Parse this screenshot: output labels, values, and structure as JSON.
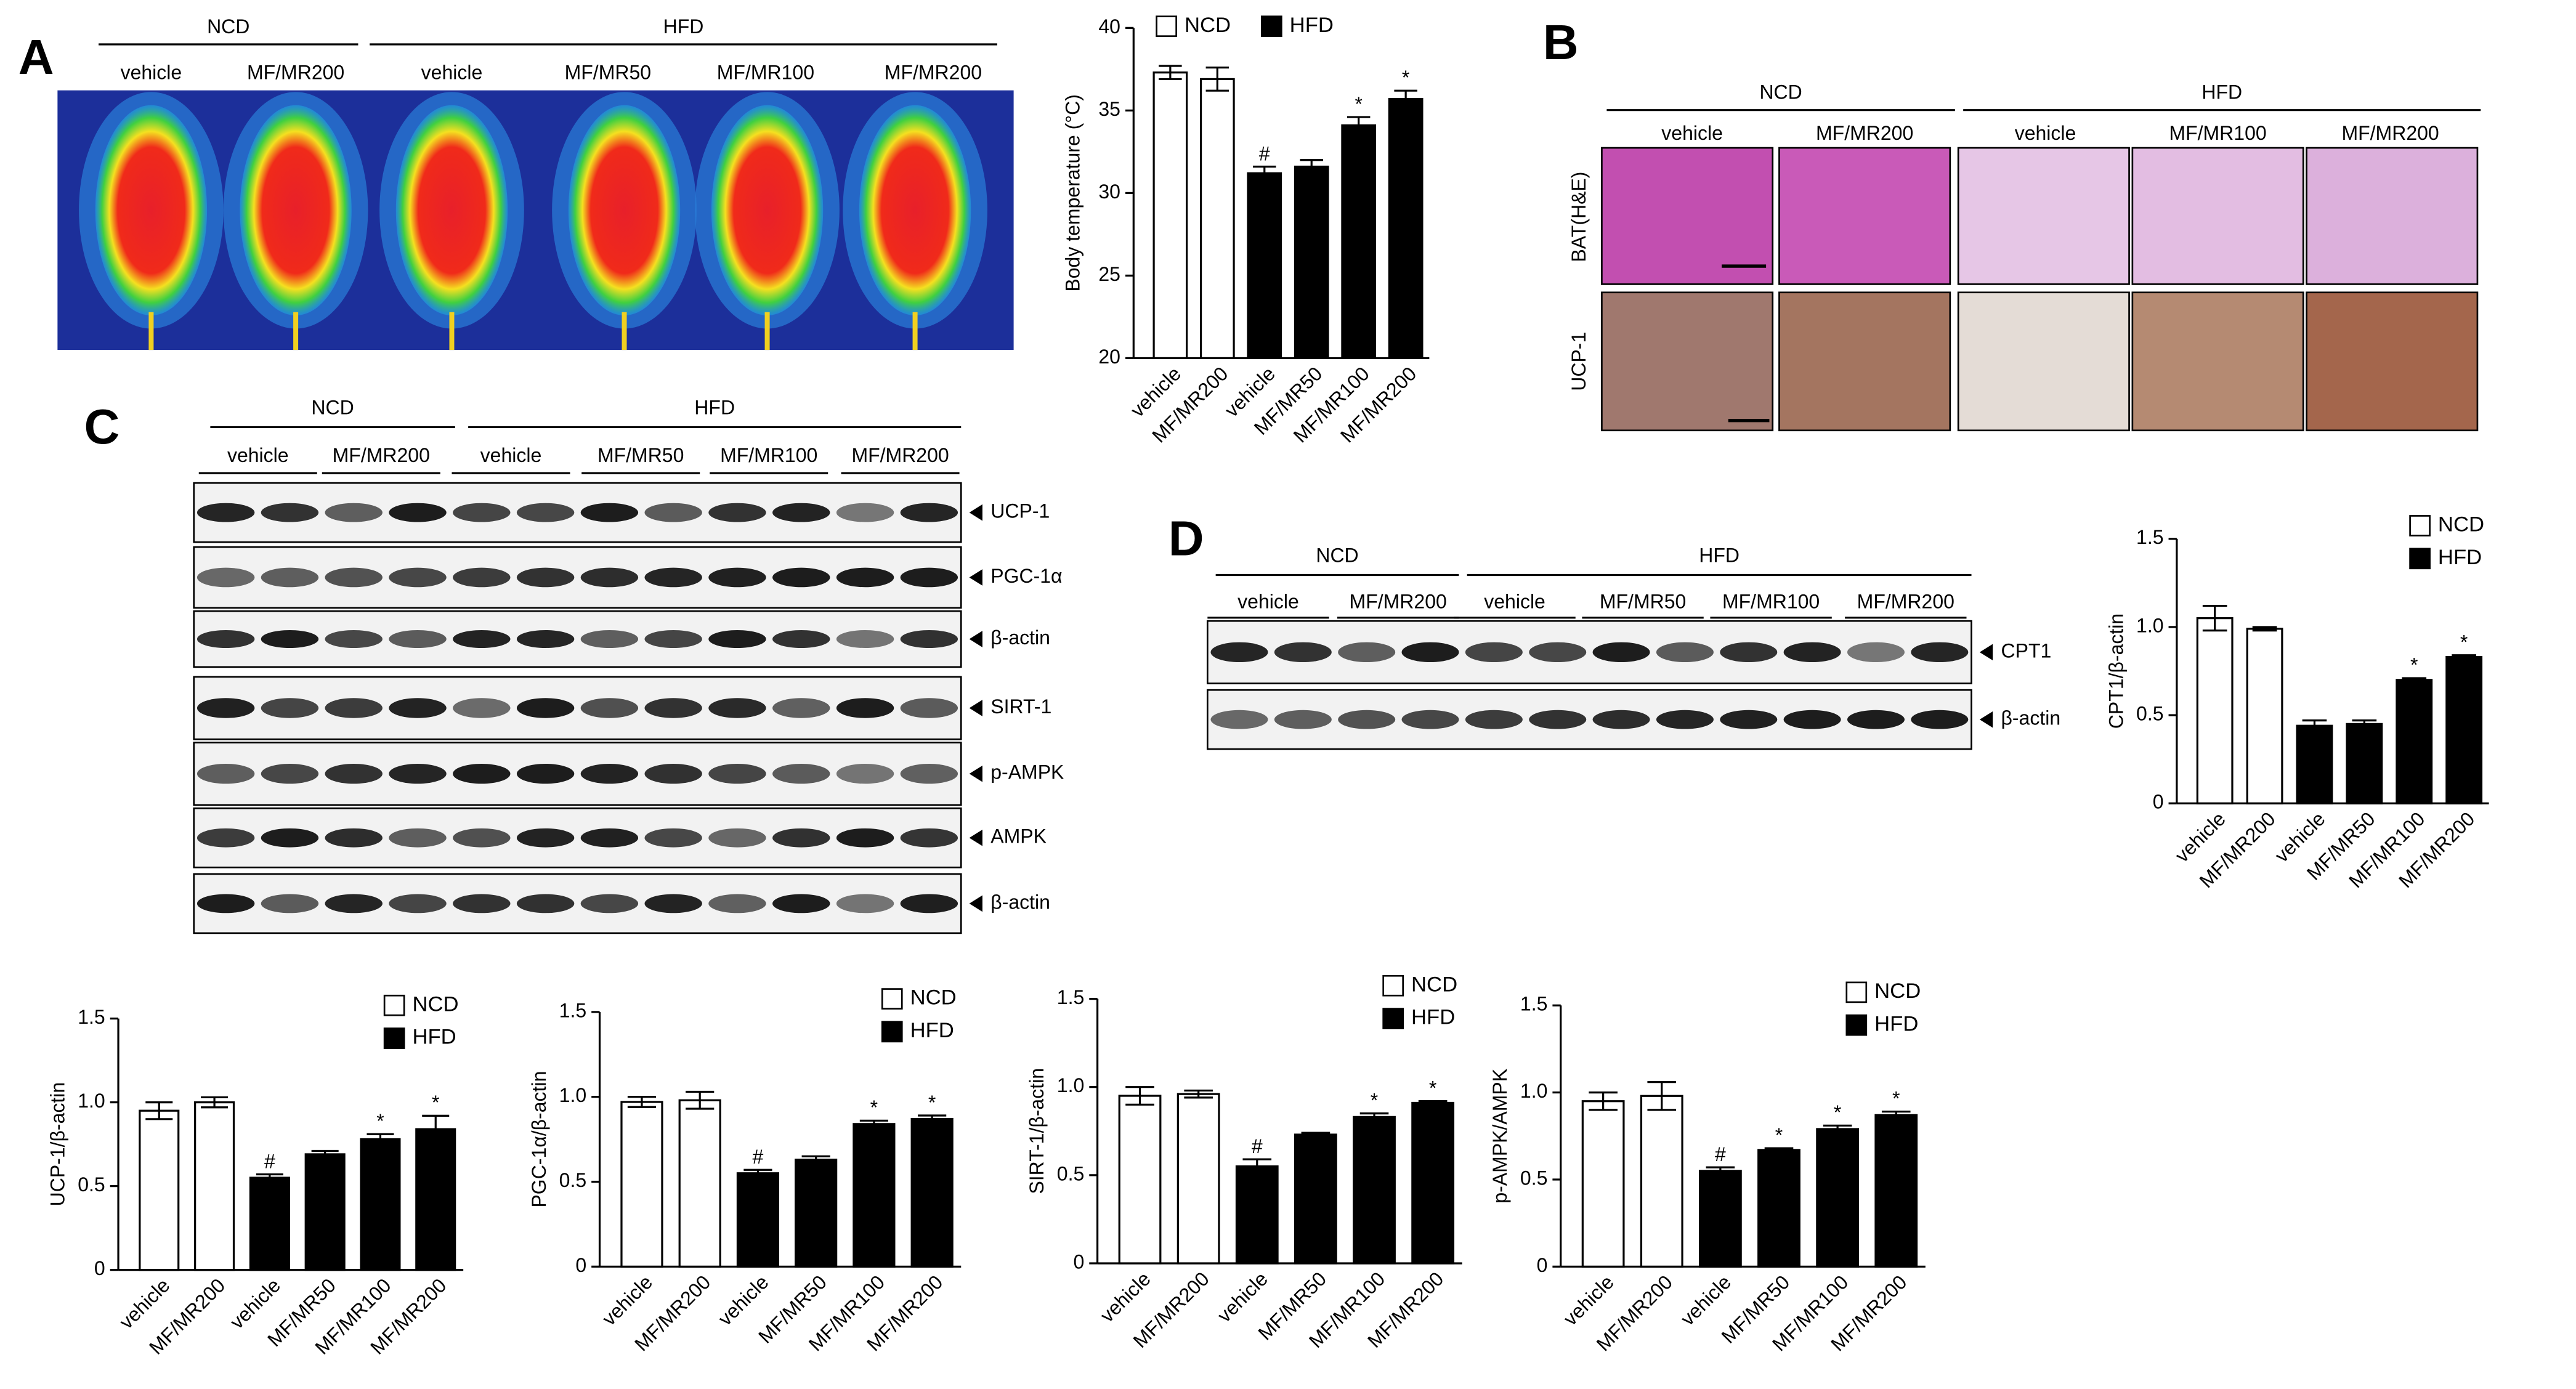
{
  "figure": {
    "panel_a": {
      "label": "A",
      "groups": [
        "NCD",
        "HFD"
      ],
      "lanes": [
        "vehicle",
        "MF/MR200",
        "vehicle",
        "MF/MR50",
        "MF/MR100",
        "MF/MR200"
      ]
    },
    "panel_b": {
      "label": "B",
      "groups": [
        "NCD",
        "HFD"
      ],
      "lanes": [
        "vehicle",
        "MF/MR200",
        "vehicle",
        "MF/MR100",
        "MF/MR200"
      ],
      "rows": [
        "BAT(H&E)",
        "UCP-1"
      ]
    },
    "panel_c": {
      "label": "C",
      "groups": [
        "NCD",
        "HFD"
      ],
      "lanes": [
        "vehicle",
        "MF/MR200",
        "vehicle",
        "MF/MR50",
        "MF/MR100",
        "MF/MR200"
      ],
      "bands": [
        "UCP-1",
        "PGC-1α",
        "β-actin",
        "SIRT-1",
        "p-AMPK",
        "AMPK",
        "β-actin"
      ]
    },
    "panel_d": {
      "label": "D",
      "groups": [
        "NCD",
        "HFD"
      ],
      "lanes": [
        "vehicle",
        "MF/MR200",
        "vehicle",
        "MF/MR50",
        "MF/MR100",
        "MF/MR200"
      ],
      "bands": [
        "CPT1",
        "β-actin"
      ]
    }
  },
  "chart_data": [
    {
      "type": "bar",
      "ylabel": "Body temperature (°C)",
      "categories": [
        "vehicle",
        "MF/MR200",
        "vehicle",
        "MF/MR50",
        "MF/MR100",
        "MF/MR200"
      ],
      "series": [
        {
          "name": "NCD",
          "color": "#ffffff",
          "values": [
            37.3,
            36.9,
            null,
            null,
            null,
            null
          ],
          "errors": [
            0.4,
            0.7,
            null,
            null,
            null,
            null
          ]
        },
        {
          "name": "HFD",
          "color": "#000000",
          "values": [
            null,
            null,
            31.2,
            31.6,
            34.1,
            35.7
          ],
          "errors": [
            null,
            null,
            0.4,
            0.4,
            0.5,
            0.5
          ]
        }
      ],
      "annotations": [
        null,
        null,
        "#",
        null,
        "*",
        "*"
      ],
      "ylim": [
        20,
        40
      ],
      "yticks": [
        20,
        25,
        30,
        35,
        40
      ],
      "legend": "top"
    },
    {
      "type": "bar",
      "ylabel": "CPT1/β-actin",
      "categories": [
        "vehicle",
        "MF/MR200",
        "vehicle",
        "MF/MR50",
        "MF/MR100",
        "MF/MR200"
      ],
      "series": [
        {
          "name": "NCD",
          "color": "#ffffff",
          "values": [
            1.05,
            0.99,
            null,
            null,
            null,
            null
          ],
          "errors": [
            0.07,
            0.01,
            null,
            null,
            null,
            null
          ]
        },
        {
          "name": "HFD",
          "color": "#000000",
          "values": [
            null,
            null,
            0.44,
            0.45,
            0.7,
            0.83
          ],
          "errors": [
            null,
            null,
            0.03,
            0.02,
            0.01,
            0.01
          ]
        }
      ],
      "annotations": [
        null,
        null,
        null,
        null,
        "*",
        "*"
      ],
      "ylim": [
        0,
        1.5
      ],
      "yticks": [
        0,
        0.5,
        {
          "value": 1,
          "label": "1.0"
        },
        1.5
      ],
      "legend": "upper-right"
    },
    {
      "type": "bar",
      "ylabel": "UCP-1/β-actin",
      "categories": [
        "vehicle",
        "MF/MR200",
        "vehicle",
        "MF/MR50",
        "MF/MR100",
        "MF/MR200"
      ],
      "series": [
        {
          "name": "NCD",
          "color": "#ffffff",
          "values": [
            0.95,
            1.0,
            null,
            null,
            null,
            null
          ],
          "errors": [
            0.05,
            0.03,
            null,
            null,
            null,
            null
          ]
        },
        {
          "name": "HFD",
          "color": "#000000",
          "values": [
            null,
            null,
            0.55,
            0.69,
            0.78,
            0.84
          ],
          "errors": [
            null,
            null,
            0.02,
            0.02,
            0.03,
            0.08
          ]
        }
      ],
      "annotations": [
        null,
        null,
        "#",
        null,
        "*",
        "*"
      ],
      "ylim": [
        0,
        1.5
      ],
      "yticks": [
        0,
        0.5,
        {
          "value": 1,
          "label": "1.0"
        },
        1.5
      ],
      "legend": "upper-right"
    },
    {
      "type": "bar",
      "ylabel": "PGC-1α/β-actin",
      "categories": [
        "vehicle",
        "MF/MR200",
        "vehicle",
        "MF/MR50",
        "MF/MR100",
        "MF/MR200"
      ],
      "series": [
        {
          "name": "NCD",
          "color": "#ffffff",
          "values": [
            0.97,
            0.98,
            null,
            null,
            null,
            null
          ],
          "errors": [
            0.03,
            0.05,
            null,
            null,
            null,
            null
          ]
        },
        {
          "name": "HFD",
          "color": "#000000",
          "values": [
            null,
            null,
            0.55,
            0.63,
            0.84,
            0.87
          ],
          "errors": [
            null,
            null,
            0.02,
            0.02,
            0.02,
            0.02
          ]
        }
      ],
      "annotations": [
        null,
        null,
        "#",
        null,
        "*",
        "*"
      ],
      "ylim": [
        0,
        1.5
      ],
      "yticks": [
        0,
        0.5,
        {
          "value": 1,
          "label": "1.0"
        },
        1.5
      ],
      "legend": "upper-right"
    },
    {
      "type": "bar",
      "ylabel": "SIRT-1/β-actin",
      "categories": [
        "vehicle",
        "MF/MR200",
        "vehicle",
        "MF/MR50",
        "MF/MR100",
        "MF/MR200"
      ],
      "series": [
        {
          "name": "NCD",
          "color": "#ffffff",
          "values": [
            0.95,
            0.96,
            null,
            null,
            null,
            null
          ],
          "errors": [
            0.05,
            0.02,
            null,
            null,
            null,
            null
          ]
        },
        {
          "name": "HFD",
          "color": "#000000",
          "values": [
            null,
            null,
            0.55,
            0.73,
            0.83,
            0.91
          ],
          "errors": [
            null,
            null,
            0.04,
            0.01,
            0.02,
            0.01
          ]
        }
      ],
      "annotations": [
        null,
        null,
        "#",
        null,
        "*",
        "*"
      ],
      "ylim": [
        0,
        1.5
      ],
      "yticks": [
        0,
        0.5,
        {
          "value": 1,
          "label": "1.0"
        },
        1.5
      ],
      "legend": "upper-right"
    },
    {
      "type": "bar",
      "ylabel": "p-AMPK/AMPK",
      "categories": [
        "vehicle",
        "MF/MR200",
        "vehicle",
        "MF/MR50",
        "MF/MR100",
        "MF/MR200"
      ],
      "series": [
        {
          "name": "NCD",
          "color": "#ffffff",
          "values": [
            0.95,
            0.98,
            null,
            null,
            null,
            null
          ],
          "errors": [
            0.05,
            0.08,
            null,
            null,
            null,
            null
          ]
        },
        {
          "name": "HFD",
          "color": "#000000",
          "values": [
            null,
            null,
            0.55,
            0.67,
            0.79,
            0.87
          ],
          "errors": [
            null,
            null,
            0.02,
            0.01,
            0.02,
            0.02
          ]
        }
      ],
      "annotations": [
        null,
        null,
        "#",
        "*",
        "*",
        "*"
      ],
      "ylim": [
        0,
        1.5
      ],
      "yticks": [
        0,
        0.5,
        {
          "value": 1,
          "label": "1.0"
        },
        1.5
      ],
      "legend": "upper-right"
    }
  ]
}
